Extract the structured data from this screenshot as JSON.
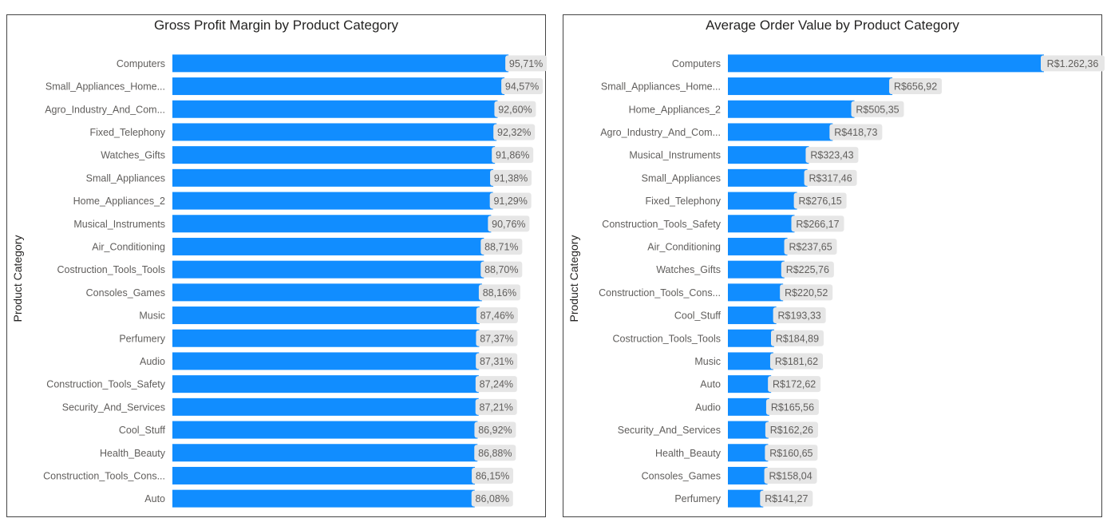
{
  "colors": {
    "bar": "#118DFF",
    "label_bg": "#E6E6E6",
    "text": "#605E5C",
    "title": "#252423"
  },
  "chart_data": [
    {
      "type": "bar",
      "orientation": "horizontal",
      "title": "Gross Profit Margin by Product Category",
      "ylabel": "Product Category",
      "xlim": [
        0,
        100
      ],
      "categories": [
        "Computers",
        "Small_Appliances_Home...",
        "Agro_Industry_And_Com...",
        "Fixed_Telephony",
        "Watches_Gifts",
        "Small_Appliances",
        "Home_Appliances_2",
        "Musical_Instruments",
        "Air_Conditioning",
        "Costruction_Tools_Tools",
        "Consoles_Games",
        "Music",
        "Perfumery",
        "Audio",
        "Construction_Tools_Safety",
        "Security_And_Services",
        "Cool_Stuff",
        "Health_Beauty",
        "Construction_Tools_Cons...",
        "Auto"
      ],
      "values": [
        95.71,
        94.57,
        92.6,
        92.32,
        91.86,
        91.38,
        91.29,
        90.76,
        88.71,
        88.7,
        88.16,
        87.46,
        87.37,
        87.31,
        87.24,
        87.21,
        86.92,
        86.88,
        86.15,
        86.08
      ],
      "data_labels": [
        "95,71%",
        "94,57%",
        "92,60%",
        "92,32%",
        "91,86%",
        "91,38%",
        "91,29%",
        "90,76%",
        "88,71%",
        "88,70%",
        "88,16%",
        "87,46%",
        "87,37%",
        "87,31%",
        "87,24%",
        "87,21%",
        "86,92%",
        "86,88%",
        "86,15%",
        "86,08%"
      ]
    },
    {
      "type": "bar",
      "orientation": "horizontal",
      "title": "Average Order Value by Product Category",
      "ylabel": "Product Category",
      "xlim": [
        0,
        1262.36
      ],
      "categories": [
        "Computers",
        "Small_Appliances_Home...",
        "Home_Appliances_2",
        "Agro_Industry_And_Com...",
        "Musical_Instruments",
        "Small_Appliances",
        "Fixed_Telephony",
        "Construction_Tools_Safety",
        "Air_Conditioning",
        "Watches_Gifts",
        "Construction_Tools_Cons...",
        "Cool_Stuff",
        "Costruction_Tools_Tools",
        "Music",
        "Auto",
        "Audio",
        "Security_And_Services",
        "Health_Beauty",
        "Consoles_Games",
        "Perfumery"
      ],
      "values": [
        1262.36,
        656.92,
        505.35,
        418.73,
        323.43,
        317.46,
        276.15,
        266.17,
        237.65,
        225.76,
        220.52,
        193.33,
        184.89,
        181.62,
        172.62,
        165.56,
        162.26,
        160.65,
        158.04,
        141.27
      ],
      "data_labels": [
        "R$1.262,36",
        "R$656,92",
        "R$505,35",
        "R$418,73",
        "R$323,43",
        "R$317,46",
        "R$276,15",
        "R$266,17",
        "R$237,65",
        "R$225,76",
        "R$220,52",
        "R$193,33",
        "R$184,89",
        "R$181,62",
        "R$172,62",
        "R$165,56",
        "R$162,26",
        "R$160,65",
        "R$158,04",
        "R$141,27"
      ]
    }
  ]
}
